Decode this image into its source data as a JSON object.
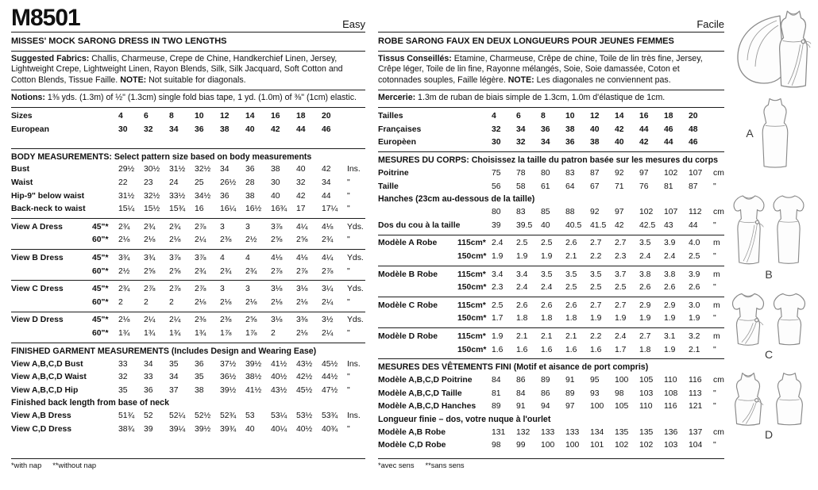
{
  "left": {
    "code": "M8501",
    "difficulty": "Easy",
    "title": "MISSES' MOCK SARONG DRESS IN TWO LENGTHS",
    "fabrics_label": "Suggested Fabrics:",
    "fabrics_text": " Challis, Charmeuse, Crepe de Chine, Handkerchief Linen, Jersey, Lightweight Crepe, Lightweight Linen, Rayon Blends, Silk, Silk Jacquard, Soft Cotton and Cotton Blends, Tissue Faille. ",
    "note_label": "NOTE:",
    "note_text": " Not suitable for diagonals.",
    "notions_label": "Notions:",
    "notions_text": " 1⅜ yds. (1.3m) of ½\" (1.3cm) single fold bias tape, 1 yd. (1.0m) of ⅜\" (1cm) elastic.",
    "footnotes": [
      "*with nap",
      "**without nap"
    ],
    "sections": [
      {
        "pad": true,
        "rows": [
          {
            "label": "Sizes",
            "sub": "",
            "b": true,
            "values": [
              "4",
              "6",
              "8",
              "10",
              "12",
              "14",
              "16",
              "18",
              "20"
            ],
            "unit": ""
          },
          {
            "label": "European",
            "sub": "",
            "b": true,
            "values": [
              "30",
              "32",
              "34",
              "36",
              "38",
              "40",
              "42",
              "44",
              "46"
            ],
            "unit": ""
          }
        ]
      },
      {
        "header": "BODY MEASUREMENTS: Select pattern size based on body measurements",
        "rows": [
          {
            "label": "Bust",
            "sub": "",
            "values": [
              "29½",
              "30½",
              "31½",
              "32½",
              "34",
              "36",
              "38",
              "40",
              "42"
            ],
            "unit": "Ins."
          },
          {
            "label": "Waist",
            "sub": "",
            "values": [
              "22",
              "23",
              "24",
              "25",
              "26½",
              "28",
              "30",
              "32",
              "34"
            ],
            "unit": "\""
          },
          {
            "label": "Hip-9\" below waist",
            "sub": "",
            "values": [
              "31½",
              "32½",
              "33½",
              "34½",
              "36",
              "38",
              "40",
              "42",
              "44"
            ],
            "unit": "\""
          },
          {
            "label": "Back-neck to waist",
            "sub": "",
            "values": [
              "15¼",
              "15½",
              "15¾",
              "16",
              "16¼",
              "16½",
              "16¾",
              "17",
              "17¼"
            ],
            "unit": "\""
          }
        ]
      },
      {
        "rows": [
          {
            "label": "View A Dress",
            "sub": "45\"*",
            "values": [
              "2¾",
              "2¾",
              "2¾",
              "2⅞",
              "3",
              "3",
              "3⅞",
              "4¼",
              "4⅛"
            ],
            "unit": "Yds."
          },
          {
            "label": "",
            "sub": "60\"*",
            "values": [
              "2⅛",
              "2⅛",
              "2⅛",
              "2¼",
              "2⅜",
              "2½",
              "2⅝",
              "2⅝",
              "2¾"
            ],
            "unit": "\""
          }
        ]
      },
      {
        "rows": [
          {
            "label": "View B Dress",
            "sub": "45\"*",
            "values": [
              "3¾",
              "3¾",
              "3⅞",
              "3⅞",
              "4",
              "4",
              "4⅛",
              "4⅛",
              "4¼"
            ],
            "unit": "Yds."
          },
          {
            "label": "",
            "sub": "60\"*",
            "values": [
              "2½",
              "2⅝",
              "2⅝",
              "2¾",
              "2¾",
              "2¾",
              "2⅞",
              "2⅞",
              "2⅞"
            ],
            "unit": "\""
          }
        ]
      },
      {
        "rows": [
          {
            "label": "View C Dress",
            "sub": "45\"*",
            "values": [
              "2¾",
              "2⅞",
              "2⅞",
              "2⅞",
              "3",
              "3",
              "3⅛",
              "3⅛",
              "3¼"
            ],
            "unit": "Yds."
          },
          {
            "label": "",
            "sub": "60\"*",
            "values": [
              "2",
              "2",
              "2",
              "2⅛",
              "2⅛",
              "2⅛",
              "2⅛",
              "2⅛",
              "2¼"
            ],
            "unit": "\""
          }
        ]
      },
      {
        "rows": [
          {
            "label": "View D Dress",
            "sub": "45\"*",
            "values": [
              "2⅛",
              "2¼",
              "2¼",
              "2⅜",
              "2⅜",
              "2⅝",
              "3⅛",
              "3⅜",
              "3½"
            ],
            "unit": "Yds."
          },
          {
            "label": "",
            "sub": "60\"*",
            "values": [
              "1¾",
              "1¾",
              "1¾",
              "1¾",
              "1⅞",
              "1⅞",
              "2",
              "2⅛",
              "2¼"
            ],
            "unit": "\""
          }
        ]
      },
      {
        "header": "FINISHED GARMENT MEASUREMENTS (Includes Design and Wearing Ease)",
        "rows": [
          {
            "label": "View A,B,C,D Bust",
            "sub": "",
            "values": [
              "33",
              "34",
              "35",
              "36",
              "37½",
              "39½",
              "41½",
              "43½",
              "45½"
            ],
            "unit": "Ins."
          },
          {
            "label": "View A,B,C,D Waist",
            "sub": "",
            "values": [
              "32",
              "33",
              "34",
              "35",
              "36½",
              "38½",
              "40½",
              "42½",
              "44½"
            ],
            "unit": "\""
          },
          {
            "label": "View A,B,C,D Hip",
            "sub": "",
            "values": [
              "35",
              "36",
              "37",
              "38",
              "39½",
              "41½",
              "43½",
              "45½",
              "47½"
            ],
            "unit": "\""
          },
          {
            "subheader": "Finished back length from base of neck"
          },
          {
            "label": "View A,B Dress",
            "sub": "",
            "values": [
              "51¾",
              "52",
              "52¼",
              "52½",
              "52¾",
              "53",
              "53¼",
              "53½",
              "53¾"
            ],
            "unit": "Ins."
          },
          {
            "label": "View C,D Dress",
            "sub": "",
            "values": [
              "38¾",
              "39",
              "39¼",
              "39½",
              "39¾",
              "40",
              "40¼",
              "40½",
              "40¾"
            ],
            "unit": "\""
          }
        ]
      }
    ]
  },
  "right": {
    "difficulty": "Facile",
    "title": "ROBE SARONG FAUX EN DEUX LONGUEURS POUR JEUNES FEMMES",
    "fabrics_label": "Tissus Conseillés:",
    "fabrics_text": " Etamine, Charmeuse, Crêpe de chine, Toile de lin très fine, Jersey, Crêpe léger, Toile de lin fine, Rayonne mélangés, Soie, Soie damassée, Coton et cotonnades souples, Faille légère. ",
    "note_label": "NOTE:",
    "note_text": " Les diagonales ne conviennent pas.",
    "notions_label": "Mercerie:",
    "notions_text": " 1.3m de ruban de biais simple de 1.3cm, 1.0m d'élastique de 1cm.",
    "footnotes": [
      "*avec sens",
      "**sans sens"
    ],
    "sections": [
      {
        "rows": [
          {
            "label": "Tailles",
            "sub": "",
            "b": true,
            "values": [
              "4",
              "6",
              "8",
              "10",
              "12",
              "14",
              "16",
              "18",
              "20"
            ],
            "unit": ""
          },
          {
            "label": "Françaises",
            "sub": "",
            "b": true,
            "values": [
              "32",
              "34",
              "36",
              "38",
              "40",
              "42",
              "44",
              "46",
              "48"
            ],
            "unit": ""
          },
          {
            "label": "Europèen",
            "sub": "",
            "b": true,
            "values": [
              "30",
              "32",
              "34",
              "36",
              "38",
              "40",
              "42",
              "44",
              "46"
            ],
            "unit": ""
          }
        ]
      },
      {
        "header": "MESURES DU CORPS: Choisissez la taille du patron basée sur les mesures du corps",
        "rows": [
          {
            "label": "Poitrine",
            "sub": "",
            "values": [
              "75",
              "78",
              "80",
              "83",
              "87",
              "92",
              "97",
              "102",
              "107"
            ],
            "unit": "cm"
          },
          {
            "label": "Taille",
            "sub": "",
            "values": [
              "56",
              "58",
              "61",
              "64",
              "67",
              "71",
              "76",
              "81",
              "87"
            ],
            "unit": "\""
          },
          {
            "subheader": "Hanches (23cm au-dessous de la taille)"
          },
          {
            "label": "",
            "sub": "",
            "values": [
              "80",
              "83",
              "85",
              "88",
              "92",
              "97",
              "102",
              "107",
              "112"
            ],
            "unit": "cm"
          },
          {
            "label": "Dos du cou à la taille",
            "sub": "",
            "values": [
              "39",
              "39.5",
              "40",
              "40.5",
              "41.5",
              "42",
              "42.5",
              "43",
              "44"
            ],
            "unit": "\""
          }
        ]
      },
      {
        "rows": [
          {
            "label": "Modèle A Robe",
            "sub": "115cm*",
            "values": [
              "2.4",
              "2.5",
              "2.5",
              "2.6",
              "2.7",
              "2.7",
              "3.5",
              "3.9",
              "4.0"
            ],
            "unit": "m"
          },
          {
            "label": "",
            "sub": "150cm*",
            "values": [
              "1.9",
              "1.9",
              "1.9",
              "2.1",
              "2.2",
              "2.3",
              "2.4",
              "2.4",
              "2.5"
            ],
            "unit": "\""
          }
        ]
      },
      {
        "rows": [
          {
            "label": "Modèle B Robe",
            "sub": "115cm*",
            "values": [
              "3.4",
              "3.4",
              "3.5",
              "3.5",
              "3.5",
              "3.7",
              "3.8",
              "3.8",
              "3.9"
            ],
            "unit": "m"
          },
          {
            "label": "",
            "sub": "150cm*",
            "values": [
              "2.3",
              "2.4",
              "2.4",
              "2.5",
              "2.5",
              "2.5",
              "2.6",
              "2.6",
              "2.6"
            ],
            "unit": "\""
          }
        ]
      },
      {
        "rows": [
          {
            "label": "Modèle C Robe",
            "sub": "115cm*",
            "values": [
              "2.5",
              "2.6",
              "2.6",
              "2.6",
              "2.7",
              "2.7",
              "2.9",
              "2.9",
              "3.0"
            ],
            "unit": "m"
          },
          {
            "label": "",
            "sub": "150cm*",
            "values": [
              "1.7",
              "1.8",
              "1.8",
              "1.8",
              "1.9",
              "1.9",
              "1.9",
              "1.9",
              "1.9"
            ],
            "unit": "\""
          }
        ]
      },
      {
        "rows": [
          {
            "label": "Modèle D Robe",
            "sub": "115cm*",
            "values": [
              "1.9",
              "2.1",
              "2.1",
              "2.1",
              "2.2",
              "2.4",
              "2.7",
              "3.1",
              "3.2"
            ],
            "unit": "m"
          },
          {
            "label": "",
            "sub": "150cm*",
            "values": [
              "1.6",
              "1.6",
              "1.6",
              "1.6",
              "1.6",
              "1.7",
              "1.8",
              "1.9",
              "2.1"
            ],
            "unit": "\""
          }
        ]
      },
      {
        "header": "MESURES DES VÊTEMENTS FINI (Motif et aisance de port compris)",
        "rows": [
          {
            "label": "Modèle A,B,C,D Poitrine",
            "sub": "",
            "values": [
              "84",
              "86",
              "89",
              "91",
              "95",
              "100",
              "105",
              "110",
              "116"
            ],
            "unit": "cm"
          },
          {
            "label": "Modèle A,B,C,D Taille",
            "sub": "",
            "values": [
              "81",
              "84",
              "86",
              "89",
              "93",
              "98",
              "103",
              "108",
              "113"
            ],
            "unit": "\""
          },
          {
            "label": "Modèle A,B,C,D Hanches",
            "sub": "",
            "values": [
              "89",
              "91",
              "94",
              "97",
              "100",
              "105",
              "110",
              "116",
              "121"
            ],
            "unit": "\""
          },
          {
            "subheader": "Longueur finie – dos, votre nuque à l'ourlet"
          },
          {
            "label": "Modèle A,B Robe",
            "sub": "",
            "values": [
              "131",
              "132",
              "133",
              "133",
              "134",
              "135",
              "135",
              "136",
              "137"
            ],
            "unit": "cm"
          },
          {
            "label": "Modèle C,D Robe",
            "sub": "",
            "values": [
              "98",
              "99",
              "100",
              "100",
              "101",
              "102",
              "102",
              "103",
              "104"
            ],
            "unit": "\""
          }
        ]
      }
    ]
  },
  "illustrations": {
    "labels": [
      "A",
      "B",
      "C",
      "D"
    ]
  }
}
